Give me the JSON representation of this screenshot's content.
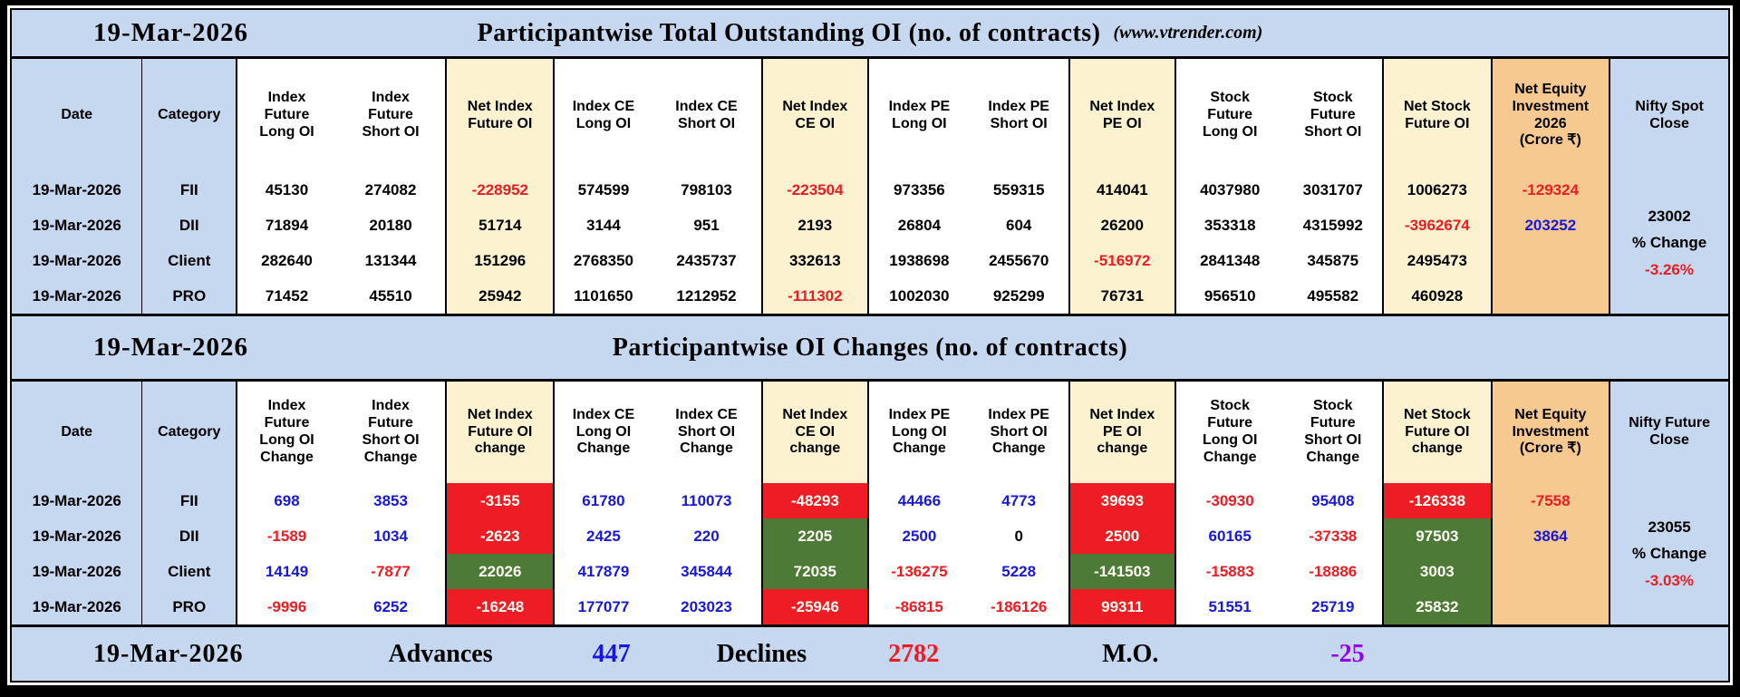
{
  "page": {
    "site_label": "(www.vtrender.com)"
  },
  "colors": {
    "page_blue": "#c6d7f0",
    "net_cream": "#fcf2cf",
    "equity_orange": "#f5c990",
    "negative_bg_red": "#ee1c24",
    "positive_bg_green": "#4d7a37",
    "red_text": "#ed1c24",
    "blue_text": "#1818d8",
    "purple_text": "#9100f0"
  },
  "layout": {
    "col_widths_pct": [
      7.6,
      5.5,
      5.8,
      6.4,
      6.3,
      5.7,
      6.4,
      6.2,
      5.9,
      5.8,
      6.2,
      6.3,
      5.8,
      6.3,
      6.9,
      6.9
    ]
  },
  "chart_data": [
    {
      "type": "table",
      "date": "19-Mar-2026",
      "title": "Participantwise Total Outstanding OI (no. of contracts)",
      "columns": [
        "Date",
        "Category",
        "Index\nFuture\nLong OI",
        "Index\nFuture\nShort OI",
        "Net Index\nFuture OI",
        "Index CE\nLong OI",
        "Index CE\nShort OI",
        "Net Index\nCE OI",
        "Index PE\nLong OI",
        "Index PE\nShort OI",
        "Net Index\nPE OI",
        "Stock\nFuture\nLong OI",
        "Stock\nFuture\nShort OI",
        "Net Stock\nFuture OI",
        "Net Equity\nInvestment\n2026\n(Crore ₹)",
        "Nifty Spot\nClose"
      ],
      "rows": [
        {
          "cells": [
            [
              "19-Mar-2026"
            ],
            [
              "FII"
            ],
            [
              "45130"
            ],
            [
              "274082"
            ],
            [
              "-228952",
              "r"
            ],
            [
              "574599"
            ],
            [
              "798103"
            ],
            [
              "-223504",
              "r"
            ],
            [
              "973356"
            ],
            [
              "559315"
            ],
            [
              "414041"
            ],
            [
              "4037980"
            ],
            [
              "3031707"
            ],
            [
              "1006273"
            ],
            [
              "-129324",
              "r"
            ]
          ]
        },
        {
          "cells": [
            [
              "19-Mar-2026"
            ],
            [
              "DII"
            ],
            [
              "71894"
            ],
            [
              "20180"
            ],
            [
              "51714"
            ],
            [
              "3144"
            ],
            [
              "951"
            ],
            [
              "2193"
            ],
            [
              "26804"
            ],
            [
              "604"
            ],
            [
              "26200"
            ],
            [
              "353318"
            ],
            [
              "4315992"
            ],
            [
              "-3962674",
              "r"
            ],
            [
              "203252",
              "b"
            ]
          ]
        },
        {
          "cells": [
            [
              "19-Mar-2026"
            ],
            [
              "Client"
            ],
            [
              "282640"
            ],
            [
              "131344"
            ],
            [
              "151296"
            ],
            [
              "2768350"
            ],
            [
              "2435737"
            ],
            [
              "332613"
            ],
            [
              "1938698"
            ],
            [
              "2455670"
            ],
            [
              "-516972",
              "r"
            ],
            [
              "2841348"
            ],
            [
              "345875"
            ],
            [
              "2495473"
            ],
            [
              ""
            ]
          ]
        },
        {
          "cells": [
            [
              "19-Mar-2026"
            ],
            [
              "PRO"
            ],
            [
              "71452"
            ],
            [
              "45510"
            ],
            [
              "25942"
            ],
            [
              "1101650"
            ],
            [
              "1212952"
            ],
            [
              "-111302",
              "r"
            ],
            [
              "1002030"
            ],
            [
              "925299"
            ],
            [
              "76731"
            ],
            [
              "956510"
            ],
            [
              "495582"
            ],
            [
              "460928"
            ],
            [
              ""
            ]
          ]
        }
      ],
      "side_column": {
        "top": "23002",
        "mid": "% Change",
        "bottom": "-3.26%",
        "top_fg": "k",
        "bottom_fg": "r"
      }
    },
    {
      "type": "table",
      "date": "19-Mar-2026",
      "title": "Participantwise OI Changes (no. of contracts)",
      "columns": [
        "Date",
        "Category",
        "Index\nFuture\nLong OI\nChange",
        "Index\nFuture\nShort OI\nChange",
        "Net Index\nFuture OI\nchange",
        "Index CE\nLong OI\nChange",
        "Index CE\nShort OI\nChange",
        "Net Index\nCE OI\nchange",
        "Index PE\nLong OI\nChange",
        "Index PE\nShort OI\nChange",
        "Net Index\nPE OI\nchange",
        "Stock\nFuture\nLong OI\nChange",
        "Stock\nFuture\nShort OI\nChange",
        "Net Stock\nFuture OI\nchange",
        "Net Equity\nInvestment\n(Crore ₹)",
        "Nifty Future\nClose"
      ],
      "rows": [
        {
          "cells": [
            [
              "19-Mar-2026"
            ],
            [
              "FII"
            ],
            [
              "698",
              "b"
            ],
            [
              "3853",
              "b"
            ],
            [
              "-3155",
              "w",
              "R"
            ],
            [
              "61780",
              "b"
            ],
            [
              "110073",
              "b"
            ],
            [
              "-48293",
              "w",
              "R"
            ],
            [
              "44466",
              "b"
            ],
            [
              "4773",
              "b"
            ],
            [
              "39693",
              "w",
              "R"
            ],
            [
              "-30930",
              "r"
            ],
            [
              "95408",
              "b"
            ],
            [
              "-126338",
              "w",
              "R"
            ],
            [
              "-7558",
              "r"
            ]
          ]
        },
        {
          "cells": [
            [
              "19-Mar-2026"
            ],
            [
              "DII"
            ],
            [
              "-1589",
              "r"
            ],
            [
              "1034",
              "b"
            ],
            [
              "-2623",
              "w",
              "R"
            ],
            [
              "2425",
              "b"
            ],
            [
              "220",
              "b"
            ],
            [
              "2205",
              "w",
              "G"
            ],
            [
              "2500",
              "b"
            ],
            [
              "0",
              "k"
            ],
            [
              "2500",
              "w",
              "R"
            ],
            [
              "60165",
              "b"
            ],
            [
              "-37338",
              "r"
            ],
            [
              "97503",
              "w",
              "G"
            ],
            [
              "3864",
              "b"
            ]
          ]
        },
        {
          "cells": [
            [
              "19-Mar-2026"
            ],
            [
              "Client"
            ],
            [
              "14149",
              "b"
            ],
            [
              "-7877",
              "r"
            ],
            [
              "22026",
              "w",
              "G"
            ],
            [
              "417879",
              "b"
            ],
            [
              "345844",
              "b"
            ],
            [
              "72035",
              "w",
              "G"
            ],
            [
              "-136275",
              "r"
            ],
            [
              "5228",
              "b"
            ],
            [
              "-141503",
              "w",
              "G"
            ],
            [
              "-15883",
              "r"
            ],
            [
              "-18886",
              "r"
            ],
            [
              "3003",
              "w",
              "G"
            ],
            [
              ""
            ]
          ]
        },
        {
          "cells": [
            [
              "19-Mar-2026"
            ],
            [
              "PRO"
            ],
            [
              "-9996",
              "r"
            ],
            [
              "6252",
              "b"
            ],
            [
              "-16248",
              "w",
              "R"
            ],
            [
              "177077",
              "b"
            ],
            [
              "203023",
              "b"
            ],
            [
              "-25946",
              "w",
              "R"
            ],
            [
              "-86815",
              "r"
            ],
            [
              "-186126",
              "r"
            ],
            [
              "99311",
              "w",
              "R"
            ],
            [
              "51551",
              "b"
            ],
            [
              "25719",
              "b"
            ],
            [
              "25832",
              "w",
              "G"
            ],
            [
              ""
            ]
          ]
        }
      ],
      "side_column": {
        "top": "23055",
        "mid": "% Change",
        "bottom": "-3.03%",
        "top_fg": "k",
        "bottom_fg": "r"
      }
    }
  ],
  "footer": {
    "date": "19-Mar-2026",
    "advances_label": "Advances",
    "advances_value": "447",
    "declines_label": "Declines",
    "declines_value": "2782",
    "mo_label": "M.O.",
    "mo_value": "-25"
  }
}
